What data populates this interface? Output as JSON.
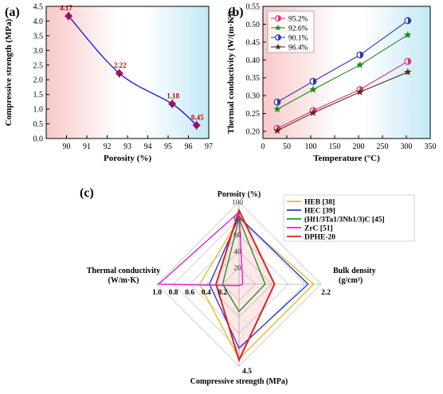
{
  "chart_data": [
    {
      "panel": "(a)",
      "type": "line",
      "xlabel": "Porosity (%)",
      "ylabel": "Compressive strength (MPa)",
      "xlim": [
        89,
        97
      ],
      "ylim": [
        0,
        4.5
      ],
      "xticks": [
        "90",
        "91",
        "92",
        "93",
        "94",
        "95",
        "96",
        "97"
      ],
      "yticks": [
        "0.0",
        "0.5",
        "1.0",
        "1.5",
        "2.0",
        "2.5",
        "3.0",
        "3.5",
        "4.0",
        "4.5"
      ],
      "x": [
        90.1,
        92.6,
        95.2,
        96.4
      ],
      "y": [
        4.17,
        2.22,
        1.18,
        0.45
      ],
      "point_labels": [
        "4.17",
        "2.22",
        "1.18",
        "0.45"
      ],
      "marker_color": "#c0007a",
      "line_color": "#1010e0",
      "label_color": "#cc0000"
    },
    {
      "panel": "(b)",
      "type": "line",
      "xlabel": "Temperature (°C)",
      "ylabel": "Thermal conductivity (W/(m·K))",
      "xlim": [
        0,
        350
      ],
      "ylim": [
        0.18,
        0.55
      ],
      "xticks": [
        "0",
        "50",
        "100",
        "150",
        "200",
        "250",
        "300",
        "350"
      ],
      "yticks": [
        "0.20",
        "0.25",
        "0.30",
        "0.35",
        "0.40",
        "0.45",
        "0.50",
        "0.55"
      ],
      "x": [
        30,
        105,
        203,
        303
      ],
      "legend_position": "top-left",
      "series": [
        {
          "name": "95.2%",
          "values": [
            0.208,
            0.258,
            0.317,
            0.396
          ],
          "color": "#e0307a",
          "marker": "circle"
        },
        {
          "name": "92.6%",
          "values": [
            0.262,
            0.317,
            0.386,
            0.47
          ],
          "color": "#1a8a1a",
          "marker": "star"
        },
        {
          "name": "90.1%",
          "values": [
            0.282,
            0.34,
            0.414,
            0.51
          ],
          "color": "#2a3ab0",
          "marker": "circle"
        },
        {
          "name": "96.4%",
          "values": [
            0.202,
            0.252,
            0.31,
            0.366
          ],
          "color": "#5a2a1a",
          "marker": "star"
        }
      ]
    },
    {
      "panel": "(c)",
      "type": "radar",
      "axes": [
        {
          "label": "Porosity (%)",
          "ticks": [
            "20",
            "40",
            "60",
            "80",
            "100"
          ],
          "max": 100
        },
        {
          "label": "Bulk density",
          "label2": "(g/cm³)",
          "tick_end": "2.2",
          "max": 2.2
        },
        {
          "label": "Compressive strength  (MPa)",
          "tick_end": "4.5",
          "max": 4.5
        },
        {
          "label": "Thermal conductivity",
          "label2": "(W/m·K)",
          "ticks": [
            "1.0",
            "0.8",
            "0.6",
            "0.4",
            "0.2"
          ],
          "max": 1.0
        }
      ],
      "legend_position": "top-right",
      "series": [
        {
          "name": "HEB [38]",
          "color": "#f0b82a",
          "values": [
            80,
            2.0,
            4.1,
            0.48
          ]
        },
        {
          "name": "HEC [39]",
          "color": "#2040e0",
          "values": [
            82,
            1.85,
            3.5,
            0.36
          ]
        },
        {
          "name": "(Hf1/3Ta1/3Nb1/3)C [45]",
          "color": "#1a9a1a",
          "values": [
            80,
            0.7,
            1.5,
            0.2
          ]
        },
        {
          "name": "ZrC [51]",
          "color": "#e020e0",
          "values": [
            88,
            0.1,
            0.08,
            0.98
          ]
        },
        {
          "name": "DPHE-20",
          "color": "#e02020",
          "values": [
            90.1,
            0.95,
            4.17,
            0.28
          ]
        }
      ]
    }
  ],
  "panel_labels": [
    "(a)",
    "(b)",
    "(c)"
  ]
}
